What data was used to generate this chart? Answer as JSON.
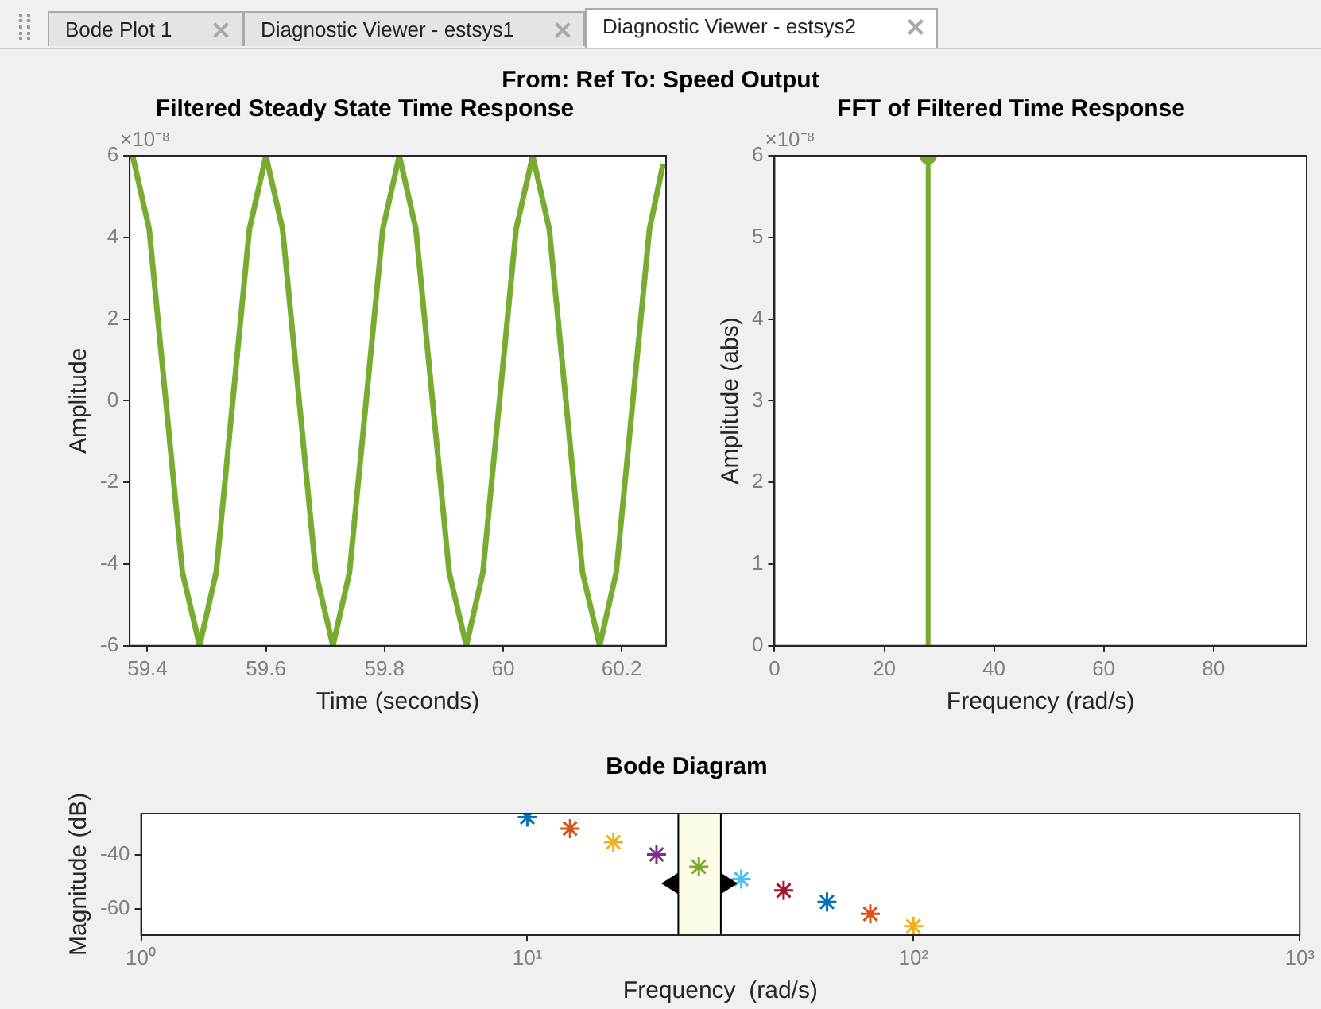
{
  "chart_data": [
    {
      "type": "other",
      "title": "From: Ref  To: Speed Output",
      "annotations": [
        "Bode Plot 1",
        "Diagnostic Viewer - estsys1",
        "Diagnostic Viewer - estsys2"
      ]
    },
    {
      "type": "line",
      "title": "Filtered Steady State Time Response",
      "xlabel": "Time (seconds)",
      "ylabel": "Amplitude",
      "annotations": [
        "×10⁻⁸"
      ],
      "xlim": [
        59.37,
        60.275
      ],
      "xticks": [
        59.4,
        59.6,
        59.8,
        60,
        60.2
      ],
      "ylim": [
        -6,
        6
      ],
      "yticks": [
        -6,
        -4,
        -2,
        0,
        2,
        4,
        6
      ],
      "line_style": "solid",
      "series": [
        {
          "color": "#77ac30",
          "x": [
            59.375,
            59.403,
            59.431,
            59.459,
            59.488,
            59.516,
            59.544,
            59.572,
            59.6,
            59.628,
            59.656,
            59.684,
            59.713,
            59.741,
            59.769,
            59.797,
            59.825,
            59.853,
            59.881,
            59.909,
            59.938,
            59.966,
            59.994,
            60.022,
            60.05,
            60.078,
            60.106,
            60.134,
            60.163,
            60.191,
            60.219,
            60.247,
            60.27
          ],
          "values": [
            6,
            4.2,
            0,
            -4.2,
            -6,
            -4.2,
            0,
            4.2,
            6,
            4.2,
            0,
            -4.2,
            -6,
            -4.2,
            0,
            4.2,
            6,
            4.2,
            0,
            -4.2,
            -6,
            -4.2,
            0,
            4.2,
            6,
            4.2,
            0,
            -4.2,
            -6,
            -4.2,
            0,
            4.2,
            5.8
          ]
        }
      ]
    },
    {
      "type": "lollipop",
      "title": "FFT of Filtered Time Response",
      "xlabel": "Frequency (rad/s)",
      "ylabel": "Amplitude (abs)",
      "annotations": [
        "×10⁻⁸"
      ],
      "xlim": [
        0,
        97
      ],
      "xticks": [
        0,
        20,
        40,
        60,
        80
      ],
      "ylim": [
        0,
        6
      ],
      "yticks": [
        0,
        1,
        2,
        3,
        4,
        5,
        6
      ],
      "series": [
        {
          "color": "#77ac30",
          "marker": "circle",
          "x": [
            28
          ],
          "values": [
            6
          ]
        },
        {
          "type": "line",
          "color": "#000000",
          "line_style": "dashed",
          "x": [
            0,
            28
          ],
          "values": [
            6,
            6
          ]
        }
      ]
    },
    {
      "type": "scatter",
      "title": "Bode Diagram",
      "xlabel": "Frequency  (rad/s)",
      "ylabel": "Magnitude (dB)",
      "log": "x",
      "marker": "cross",
      "xlim": [
        1,
        1000
      ],
      "xticks": [
        {
          "value": 1,
          "label": "10⁰"
        },
        {
          "value": 10,
          "label": "10¹"
        },
        {
          "value": 100,
          "label": "10²"
        },
        {
          "value": 1000,
          "label": "10³"
        }
      ],
      "ylim": [
        -69.5,
        -25
      ],
      "yticks": [
        -60,
        -40
      ],
      "bands": [
        {
          "axis": "x",
          "from": 24.6,
          "to": 31.7,
          "color": "#fbfbe6"
        }
      ],
      "ref_lines": [
        {
          "axis": "x",
          "value": 24.6,
          "color": "#000000"
        },
        {
          "axis": "x",
          "value": 31.7,
          "color": "#000000"
        }
      ],
      "x": [
        10,
        12.9,
        16.7,
        21.6,
        27.8,
        35.8,
        46.1,
        59.7,
        77.3,
        100
      ],
      "values": [
        -26.3,
        -30.5,
        -35.5,
        -40,
        -44.5,
        -49,
        -53.2,
        -57.4,
        -61.8,
        -66.3
      ],
      "colors": [
        "#0072bd",
        "#d95319",
        "#edb120",
        "#7e2f8e",
        "#77ac30",
        "#4dbeee",
        "#a2142f",
        "#0072bd",
        "#d95319",
        "#edb120"
      ]
    }
  ]
}
